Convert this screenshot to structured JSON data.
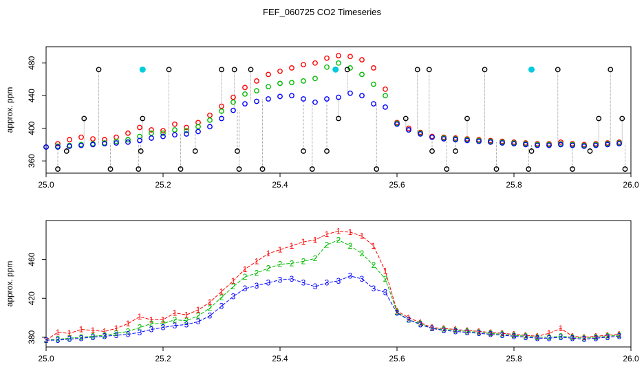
{
  "figure": {
    "title": "FEF_060725  CO2 Timeseries",
    "ylabel": "approx. ppm",
    "colors": {
      "series_1": "#ff0000",
      "series_2": "#00bb00",
      "series_3": "#0000ff",
      "flagged": "#000000",
      "highlight": "#00ccdd",
      "connector": "#999999"
    }
  },
  "chart_data": [
    {
      "type": "scatter",
      "title": "FEF_060725  CO2 Timeseries",
      "xlabel": "",
      "ylabel": "approx. ppm",
      "xlim": [
        25.0,
        26.0
      ],
      "ylim": [
        345,
        500
      ],
      "xticks": [
        25.0,
        25.2,
        25.4,
        25.6,
        25.8,
        26.0
      ],
      "xtick_labels": [
        "25.0",
        "25.2",
        "25.4",
        "25.6",
        "25.8",
        "26.0"
      ],
      "yticks": [
        360,
        400,
        440,
        480
      ],
      "ytick_labels": [
        "360",
        "400",
        "440",
        "480"
      ],
      "grid": false,
      "marker": "open circle",
      "series": [
        {
          "x": [
            25.0,
            25.02,
            25.04,
            25.06,
            25.08,
            25.1,
            25.12,
            25.14,
            25.16,
            25.18,
            25.2,
            25.22,
            25.24,
            25.26,
            25.28,
            25.3,
            25.32,
            25.34,
            25.36,
            25.38,
            25.4,
            25.42,
            25.44,
            25.46,
            25.48,
            25.5,
            25.52,
            25.54,
            25.56,
            25.58,
            25.6,
            25.62,
            25.64,
            25.66,
            25.68,
            25.7,
            25.72,
            25.74,
            25.76,
            25.78,
            25.8,
            25.82,
            25.84,
            25.86,
            25.88,
            25.9,
            25.92,
            25.94,
            25.96,
            25.98
          ],
          "y": [
            377,
            381,
            386,
            389,
            387,
            386,
            389,
            394,
            401,
            398,
            397,
            405,
            401,
            407,
            416,
            427,
            438,
            450,
            458,
            466,
            470,
            474,
            478,
            480,
            486,
            489,
            488,
            484,
            474,
            448,
            407,
            400,
            395,
            390,
            389,
            388,
            387,
            386,
            385,
            384,
            383,
            382,
            381,
            381,
            383,
            381,
            380,
            381,
            382,
            383
          ]
        },
        {
          "x": [
            25.0,
            25.02,
            25.04,
            25.06,
            25.08,
            25.1,
            25.12,
            25.14,
            25.16,
            25.18,
            25.2,
            25.22,
            25.24,
            25.26,
            25.28,
            25.3,
            25.32,
            25.34,
            25.36,
            25.38,
            25.4,
            25.42,
            25.44,
            25.46,
            25.48,
            25.5,
            25.52,
            25.54,
            25.56,
            25.58,
            25.6,
            25.62,
            25.64,
            25.66,
            25.68,
            25.7,
            25.72,
            25.74,
            25.76,
            25.78,
            25.8,
            25.82,
            25.84,
            25.86,
            25.88,
            25.9,
            25.92,
            25.94,
            25.96,
            25.98
          ],
          "y": [
            377,
            378,
            379,
            380,
            381,
            382,
            384,
            386,
            390,
            394,
            394,
            398,
            397,
            402,
            410,
            421,
            432,
            442,
            446,
            451,
            455,
            456,
            458,
            461,
            475,
            480,
            474,
            466,
            454,
            440,
            406,
            398,
            394,
            389,
            388,
            387,
            386,
            385,
            384,
            383,
            382,
            381,
            380,
            380,
            381,
            380,
            379,
            380,
            381,
            382
          ]
        },
        {
          "x": [
            25.0,
            25.02,
            25.04,
            25.06,
            25.08,
            25.1,
            25.12,
            25.14,
            25.16,
            25.18,
            25.2,
            25.22,
            25.24,
            25.26,
            25.28,
            25.3,
            25.32,
            25.34,
            25.36,
            25.38,
            25.4,
            25.42,
            25.44,
            25.46,
            25.48,
            25.5,
            25.52,
            25.54,
            25.56,
            25.58,
            25.6,
            25.62,
            25.64,
            25.66,
            25.68,
            25.7,
            25.72,
            25.74,
            25.76,
            25.78,
            25.8,
            25.82,
            25.84,
            25.86,
            25.88,
            25.9,
            25.92,
            25.94,
            25.96,
            25.98
          ],
          "y": [
            377,
            377,
            378,
            379,
            380,
            381,
            382,
            383,
            385,
            388,
            390,
            392,
            393,
            396,
            402,
            412,
            422,
            430,
            433,
            436,
            439,
            440,
            436,
            432,
            436,
            438,
            443,
            440,
            430,
            426,
            405,
            398,
            393,
            389,
            387,
            386,
            385,
            384,
            383,
            382,
            381,
            380,
            379,
            379,
            380,
            379,
            378,
            379,
            380,
            381
          ]
        },
        {
          "x": [
            25.02,
            25.035,
            25.065,
            25.09,
            25.11,
            25.158,
            25.162,
            25.165,
            25.21,
            25.23,
            25.255,
            25.3,
            25.322,
            25.327,
            25.33,
            25.35,
            25.37,
            25.44,
            25.455,
            25.48,
            25.5,
            25.515,
            25.565,
            25.615,
            25.635,
            25.655,
            25.66,
            25.685,
            25.7,
            25.72,
            25.75,
            25.77,
            25.825,
            25.83,
            25.875,
            25.9,
            25.93,
            25.945,
            25.965,
            25.985,
            25.99
          ],
          "y": [
            350,
            372,
            412,
            472,
            350,
            350,
            372,
            412,
            472,
            350,
            372,
            472,
            472,
            372,
            350,
            472,
            350,
            372,
            350,
            372,
            412,
            472,
            350,
            412,
            472,
            472,
            372,
            350,
            372,
            412,
            472,
            350,
            350,
            372,
            472,
            350,
            372,
            412,
            472,
            412,
            350
          ]
        },
        {
          "x": [
            25.165,
            25.495,
            25.83
          ],
          "y": [
            472,
            472,
            472
          ]
        }
      ]
    },
    {
      "type": "line",
      "title": "",
      "xlabel": "",
      "ylabel": "approx. ppm",
      "xlim": [
        25.0,
        26.0
      ],
      "ylim": [
        370,
        500
      ],
      "xticks": [
        25.0,
        25.2,
        25.4,
        25.6,
        25.8,
        26.0
      ],
      "xtick_labels": [
        "25.0",
        "25.2",
        "25.4",
        "25.6",
        "25.8",
        "26.0"
      ],
      "yticks": [
        380,
        420,
        460
      ],
      "ytick_labels": [
        "380",
        "420",
        "460"
      ],
      "grid": false,
      "marker": "digit label",
      "series": [
        {
          "label": "1",
          "x": [
            25.0,
            25.02,
            25.04,
            25.06,
            25.08,
            25.1,
            25.12,
            25.14,
            25.16,
            25.18,
            25.2,
            25.22,
            25.24,
            25.26,
            25.28,
            25.3,
            25.32,
            25.34,
            25.36,
            25.38,
            25.4,
            25.42,
            25.44,
            25.46,
            25.48,
            25.5,
            25.52,
            25.54,
            25.56,
            25.58,
            25.6,
            25.62,
            25.64,
            25.66,
            25.68,
            25.7,
            25.72,
            25.74,
            25.76,
            25.78,
            25.8,
            25.82,
            25.84,
            25.86,
            25.88,
            25.9,
            25.92,
            25.94,
            25.96,
            25.98
          ],
          "y": [
            377,
            385,
            384,
            388,
            387,
            386,
            389,
            394,
            401,
            398,
            398,
            405,
            403,
            408,
            416,
            427,
            438,
            450,
            458,
            466,
            470,
            474,
            478,
            480,
            486,
            489,
            488,
            484,
            474,
            448,
            407,
            400,
            395,
            390,
            389,
            388,
            387,
            386,
            385,
            384,
            383,
            382,
            381,
            384,
            389,
            381,
            380,
            381,
            382,
            383
          ]
        },
        {
          "label": "2",
          "x": [
            25.0,
            25.02,
            25.04,
            25.06,
            25.08,
            25.1,
            25.12,
            25.14,
            25.16,
            25.18,
            25.2,
            25.22,
            25.24,
            25.26,
            25.28,
            25.3,
            25.32,
            25.34,
            25.36,
            25.38,
            25.4,
            25.42,
            25.44,
            25.46,
            25.48,
            25.5,
            25.52,
            25.54,
            25.56,
            25.58,
            25.6,
            25.62,
            25.64,
            25.66,
            25.68,
            25.7,
            25.72,
            25.74,
            25.76,
            25.78,
            25.8,
            25.82,
            25.84,
            25.86,
            25.88,
            25.9,
            25.92,
            25.94,
            25.96,
            25.98
          ],
          "y": [
            377,
            378,
            379,
            380,
            381,
            382,
            384,
            386,
            390,
            394,
            394,
            398,
            397,
            402,
            410,
            421,
            432,
            442,
            446,
            451,
            455,
            456,
            458,
            461,
            475,
            480,
            474,
            466,
            454,
            440,
            406,
            398,
            394,
            389,
            388,
            387,
            386,
            385,
            384,
            383,
            382,
            381,
            380,
            380,
            381,
            380,
            379,
            380,
            381,
            382
          ]
        },
        {
          "label": "3",
          "x": [
            25.0,
            25.02,
            25.04,
            25.06,
            25.08,
            25.1,
            25.12,
            25.14,
            25.16,
            25.18,
            25.2,
            25.22,
            25.24,
            25.26,
            25.28,
            25.3,
            25.32,
            25.34,
            25.36,
            25.38,
            25.4,
            25.42,
            25.44,
            25.46,
            25.48,
            25.5,
            25.52,
            25.54,
            25.56,
            25.58,
            25.6,
            25.62,
            25.64,
            25.66,
            25.68,
            25.7,
            25.72,
            25.74,
            25.76,
            25.78,
            25.8,
            25.82,
            25.84,
            25.86,
            25.88,
            25.9,
            25.92,
            25.94,
            25.96,
            25.98
          ],
          "y": [
            377,
            377,
            378,
            379,
            380,
            381,
            382,
            383,
            385,
            388,
            390,
            392,
            393,
            396,
            402,
            412,
            422,
            430,
            433,
            436,
            439,
            440,
            436,
            432,
            436,
            438,
            443,
            440,
            430,
            426,
            405,
            398,
            393,
            389,
            387,
            386,
            385,
            384,
            383,
            382,
            381,
            380,
            379,
            379,
            380,
            379,
            378,
            379,
            380,
            381
          ]
        }
      ]
    }
  ]
}
